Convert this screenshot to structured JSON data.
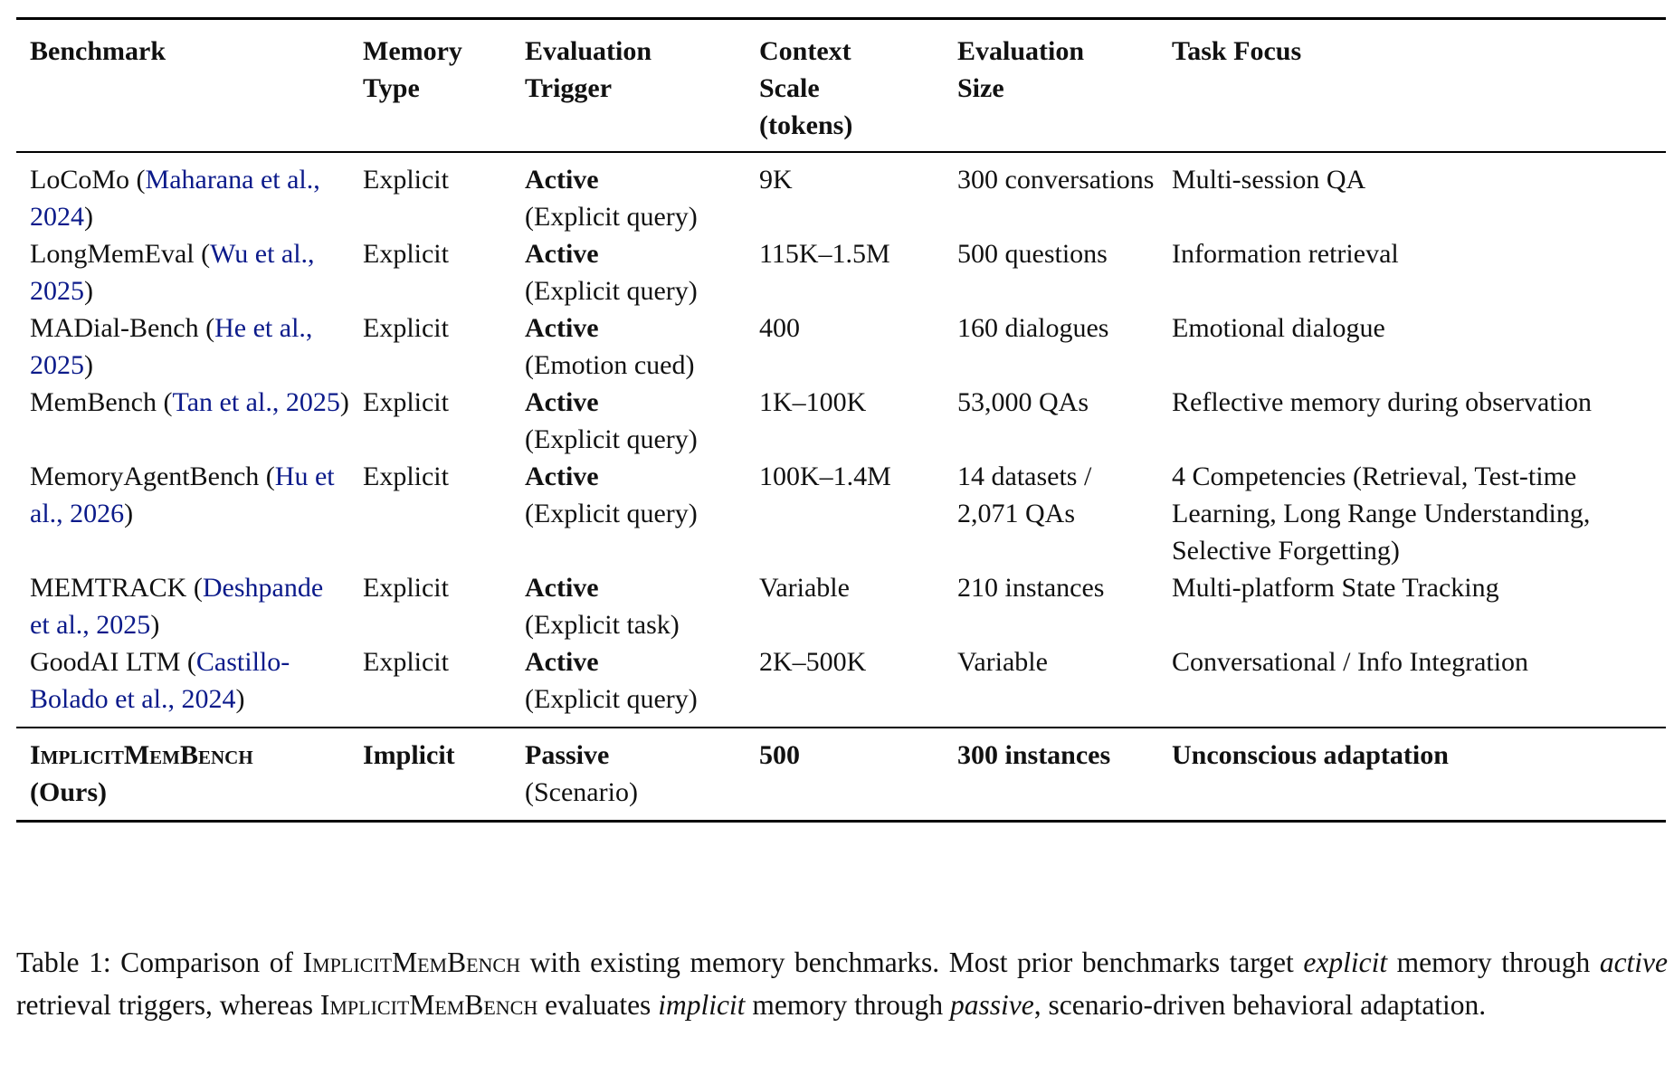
{
  "table": {
    "headers": [
      "Benchmark",
      "Memory Type",
      "Evaluation Trigger",
      "Context Scale (tokens)",
      "Evaluation Size",
      "Task Focus"
    ],
    "rows": [
      {
        "name": "LoCoMo",
        "citation": "Maharana et al., 2024",
        "memory_type": "Explicit",
        "trigger": "Active",
        "trigger_detail": "(Explicit query)",
        "context_scale": "9K",
        "eval_size": "300 conversations",
        "task_focus": "Multi-session QA"
      },
      {
        "name": "LongMemEval",
        "citation": "Wu et al., 2025",
        "memory_type": "Explicit",
        "trigger": "Active",
        "trigger_detail": "(Explicit query)",
        "context_scale": "115K–1.5M",
        "eval_size": "500 questions",
        "task_focus": "Information retrieval"
      },
      {
        "name": "MADial-Bench",
        "citation": "He et al., 2025",
        "memory_type": "Explicit",
        "trigger": "Active",
        "trigger_detail": "(Emotion cued)",
        "context_scale": "400",
        "eval_size": "160 dialogues",
        "task_focus": "Emotional dialogue"
      },
      {
        "name": "MemBench",
        "citation": "Tan et al., 2025",
        "memory_type": "Explicit",
        "trigger": "Active",
        "trigger_detail": "(Explicit query)",
        "context_scale": "1K–100K",
        "eval_size": "53,000 QAs",
        "task_focus": "Reflective memory during observation"
      },
      {
        "name": "MemoryAgentBench",
        "citation": "Hu et al., 2026",
        "memory_type": "Explicit",
        "trigger": "Active",
        "trigger_detail": "(Explicit query)",
        "context_scale": "100K–1.4M",
        "eval_size": "14 datasets / 2,071 QAs",
        "task_focus": "4 Competencies (Retrieval, Test-time Learning, Long Range Understanding, Selective Forgetting)"
      },
      {
        "name": "MEMTRACK",
        "citation": "Deshpande et al., 2025",
        "memory_type": "Explicit",
        "trigger": "Active",
        "trigger_detail": "(Explicit task)",
        "context_scale": "Variable",
        "eval_size": "210 instances",
        "task_focus": "Multi-platform State Tracking"
      },
      {
        "name": "GoodAI LTM",
        "citation": "Castillo-Bolado et al., 2024",
        "memory_type": "Explicit",
        "trigger": "Active",
        "trigger_detail": "(Explicit query)",
        "context_scale": "2K–500K",
        "eval_size": "Variable",
        "task_focus": "Conversational / Info Integration"
      }
    ],
    "ours": {
      "name": "ImplicitMemBench",
      "suffix": "(Ours)",
      "memory_type": "Implicit",
      "trigger": "Passive",
      "trigger_detail": "(Scenario)",
      "context_scale": "500",
      "eval_size": "300 instances",
      "task_focus": "Unconscious adaptation"
    }
  },
  "caption": {
    "label": "Table 1:",
    "p1": " Comparison of ",
    "name1": "ImplicitMemBench",
    "p2": " with existing memory benchmarks. Most prior benchmarks target ",
    "em1": "explicit",
    "p3": " memory through ",
    "em2": "active",
    "p4": " retrieval triggers, whereas ",
    "name2": "ImplicitMemBench",
    "p5": " evaluates ",
    "em3": "implicit",
    "p6": " memory through ",
    "em4": "passive",
    "p7": ", scenario-driven behavioral adaptation."
  },
  "colors": {
    "citation_link": "#0b1a8a",
    "text": "#111111"
  }
}
